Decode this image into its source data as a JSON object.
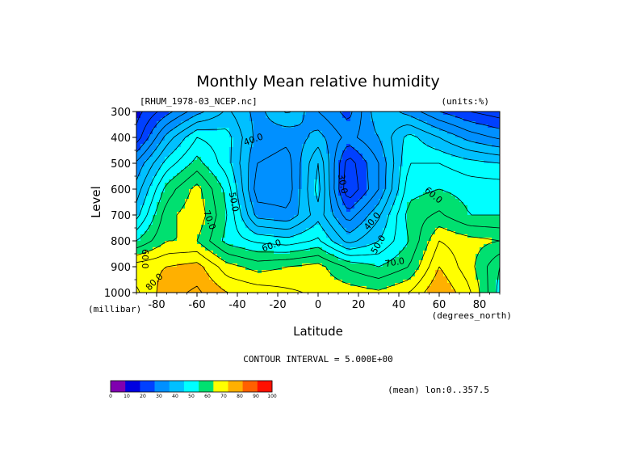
{
  "chart_data": {
    "type": "contour",
    "title": "Monthly Mean relative humidity",
    "source_label": "[RHUM_1978-03_NCEP.nc]",
    "units_label": "(units:%)",
    "xlabel": "Latitude",
    "xunits": "(degrees_north)",
    "ylabel": "Level",
    "yunits": "(millibar)",
    "xlim": [
      -90,
      90
    ],
    "ylim": [
      1000,
      300
    ],
    "x_ticks": [
      -80,
      -60,
      -40,
      -20,
      0,
      20,
      40,
      60,
      80
    ],
    "x_tick_labels": [
      "-80",
      "-60",
      "-40",
      "-20",
      "0",
      "20",
      "40",
      "60",
      "80"
    ],
    "y_ticks": [
      300,
      400,
      500,
      600,
      700,
      800,
      900,
      1000
    ],
    "y_tick_labels": [
      "300",
      "400",
      "500",
      "600",
      "700",
      "800",
      "900",
      "1000"
    ],
    "contour_interval_text": "CONTOUR INTERVAL = 5.000E+00",
    "mean_text": "(mean) lon:0..357.5",
    "contour_labels": [
      {
        "text": "40.0",
        "lat": -32,
        "lev": 410,
        "rotate": -20
      },
      {
        "text": "30.0",
        "lat": 12,
        "lev": 580,
        "rotate": 80
      },
      {
        "text": "40.0",
        "lat": 27,
        "lev": 725,
        "rotate": -50
      },
      {
        "text": "50.0",
        "lat": -42,
        "lev": 650,
        "rotate": 80
      },
      {
        "text": "50.0",
        "lat": 30,
        "lev": 815,
        "rotate": -60
      },
      {
        "text": "60.0",
        "lat": -23,
        "lev": 820,
        "rotate": -20
      },
      {
        "text": "60.0",
        "lat": 57,
        "lev": 625,
        "rotate": 40
      },
      {
        "text": "60.0",
        "lat": -86,
        "lev": 870,
        "rotate": 90
      },
      {
        "text": "70.0",
        "lat": -54,
        "lev": 720,
        "rotate": 70
      },
      {
        "text": "70.0",
        "lat": 38,
        "lev": 885,
        "rotate": -10
      },
      {
        "text": "80.0",
        "lat": -81,
        "lev": 960,
        "rotate": -45
      }
    ],
    "levels": [
      0,
      10,
      20,
      30,
      40,
      50,
      60,
      70,
      80,
      90,
      100
    ],
    "colorbar": {
      "labels": [
        "0",
        "10",
        "20",
        "30",
        "40",
        "50",
        "60",
        "70",
        "80",
        "90",
        "100"
      ],
      "colors": [
        "#8000b0",
        "#0000e0",
        "#0040ff",
        "#0090ff",
        "#00c0ff",
        "#00ffff",
        "#00e070",
        "#ffff00",
        "#ffb000",
        "#ff6000",
        "#ff1000"
      ]
    },
    "grid_lat": [
      -90,
      -75,
      -60,
      -45,
      -30,
      -15,
      0,
      15,
      30,
      45,
      60,
      75,
      90
    ],
    "grid_lev": [
      300,
      400,
      500,
      600,
      700,
      800,
      900,
      1000
    ],
    "values": [
      [
        18,
        28,
        38,
        46,
        38,
        46,
        35,
        28,
        44,
        38,
        30,
        25,
        22
      ],
      [
        22,
        42,
        55,
        52,
        38,
        36,
        42,
        33,
        40,
        52,
        45,
        38,
        34
      ],
      [
        36,
        52,
        62,
        52,
        35,
        33,
        50,
        22,
        35,
        55,
        55,
        52,
        50
      ],
      [
        42,
        62,
        72,
        58,
        32,
        32,
        52,
        20,
        35,
        58,
        60,
        58,
        58
      ],
      [
        48,
        68,
        74,
        60,
        38,
        36,
        48,
        32,
        44,
        62,
        66,
        60,
        60
      ],
      [
        60,
        70,
        70,
        58,
        54,
        52,
        56,
        43,
        50,
        60,
        75,
        72,
        70
      ],
      [
        78,
        80,
        82,
        72,
        68,
        70,
        72,
        64,
        60,
        65,
        80,
        72,
        60
      ],
      [
        74,
        83,
        86,
        80,
        78,
        76,
        74,
        73,
        71,
        75,
        85,
        76,
        58
      ]
    ]
  }
}
